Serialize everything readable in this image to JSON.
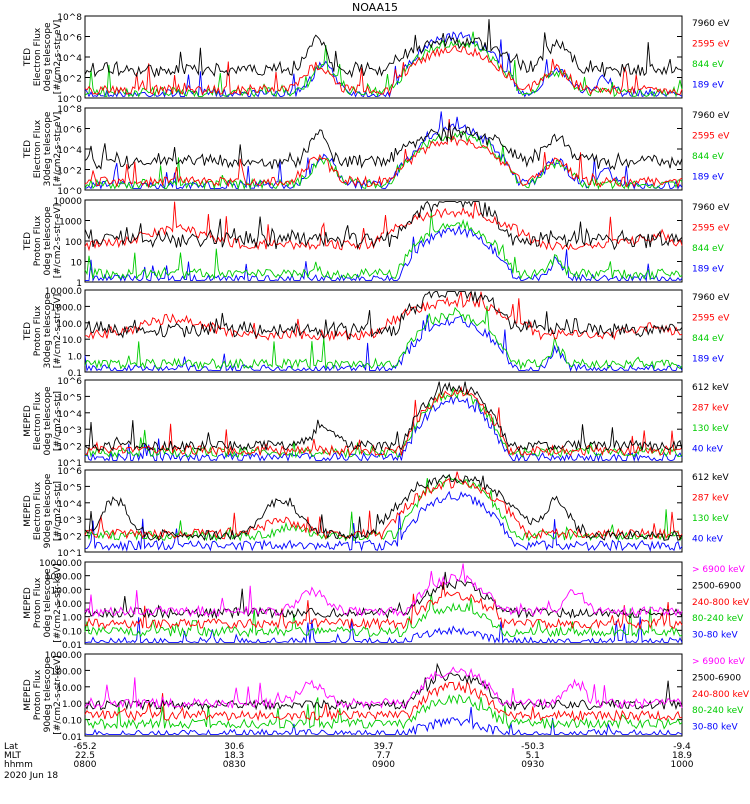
{
  "title": "NOAA15",
  "date_label": "2020 Jun 18",
  "colors": {
    "black": "#000000",
    "red": "#ff0000",
    "green": "#00cc00",
    "blue": "#0000ff",
    "magenta": "#ff00ff"
  },
  "ephemeris": {
    "row_labels": [
      "Lat",
      "MLT",
      "hhmm"
    ],
    "columns": [
      {
        "lat": "-65.2",
        "mlt": "22.5",
        "hhmm": "0800"
      },
      {
        "lat": "30.6",
        "mlt": "18.3",
        "hhmm": "0830"
      },
      {
        "lat": "39.7",
        "mlt": "7.7",
        "hhmm": "0900"
      },
      {
        "lat": "-50.3",
        "mlt": "5.1",
        "hhmm": "0930"
      },
      {
        "lat": "-9.4",
        "mlt": "18.9",
        "hhmm": "1000"
      }
    ]
  },
  "chart_data": [
    {
      "type": "line",
      "ylabel": [
        "TED",
        "Electron Flux",
        "0deg telescope",
        "[#/cm2-s-str-eV]"
      ],
      "yscale": "log",
      "ytick_labels": [
        "10^0",
        "10^2",
        "10^4",
        "10^6",
        "10^8"
      ],
      "series": [
        {
          "name": "7960 eV",
          "color": "black"
        },
        {
          "name": "2595 eV",
          "color": "red"
        },
        {
          "name": "844 eV",
          "color": "green"
        },
        {
          "name": "189 eV",
          "color": "blue"
        }
      ]
    },
    {
      "type": "line",
      "ylabel": [
        "TED",
        "Electron Flux",
        "30deg telescope",
        "[#/cm2-s-str-eV]"
      ],
      "yscale": "log",
      "ytick_labels": [
        "10^0",
        "10^2",
        "10^4",
        "10^6",
        "10^8"
      ],
      "series": [
        {
          "name": "7960 eV",
          "color": "black"
        },
        {
          "name": "2595 eV",
          "color": "red"
        },
        {
          "name": "844 eV",
          "color": "green"
        },
        {
          "name": "189 eV",
          "color": "blue"
        }
      ]
    },
    {
      "type": "line",
      "ylabel": [
        "TED",
        "Proton Flux",
        "0deg telescope",
        "[#/cm2-s-str-eV]"
      ],
      "yscale": "log",
      "ytick_labels": [
        "1",
        "10",
        "100",
        "1000",
        "10000"
      ],
      "series": [
        {
          "name": "7960 eV",
          "color": "black"
        },
        {
          "name": "2595 eV",
          "color": "red"
        },
        {
          "name": "844 eV",
          "color": "green"
        },
        {
          "name": "189 eV",
          "color": "blue"
        }
      ]
    },
    {
      "type": "line",
      "ylabel": [
        "TED",
        "Proton Flux",
        "30deg telescope",
        "[#/cm2-s-str-eV]"
      ],
      "yscale": "log",
      "ytick_labels": [
        "0.1",
        "1.0",
        "10.0",
        "100.0",
        "1000.0",
        "10000.0"
      ],
      "series": [
        {
          "name": "7960 eV",
          "color": "black"
        },
        {
          "name": "2595 eV",
          "color": "red"
        },
        {
          "name": "844 eV",
          "color": "green"
        },
        {
          "name": "189 eV",
          "color": "blue"
        }
      ]
    },
    {
      "type": "line",
      "ylabel": [
        "MEPED",
        "Electron Flux",
        "0deg telescope",
        "[#/cm2-s-str]"
      ],
      "yscale": "log",
      "ytick_labels": [
        "10^1",
        "10^2",
        "10^3",
        "10^4",
        "10^5",
        "10^6"
      ],
      "series": [
        {
          "name": "612 keV",
          "color": "black"
        },
        {
          "name": "287 keV",
          "color": "red"
        },
        {
          "name": "130 keV",
          "color": "green"
        },
        {
          "name": "40 keV",
          "color": "blue"
        }
      ]
    },
    {
      "type": "line",
      "ylabel": [
        "MEPED",
        "Electron Flux",
        "90deg telescope",
        "[#/cm2-s-str]"
      ],
      "yscale": "log",
      "ytick_labels": [
        "10^1",
        "10^2",
        "10^3",
        "10^4",
        "10^5",
        "10^6"
      ],
      "series": [
        {
          "name": "612 keV",
          "color": "black"
        },
        {
          "name": "287 keV",
          "color": "red"
        },
        {
          "name": "130 keV",
          "color": "green"
        },
        {
          "name": "40 keV",
          "color": "blue"
        }
      ]
    },
    {
      "type": "line",
      "ylabel": [
        "MEPED",
        "Proton Flux",
        "0deg telescope",
        "[#/cm2-s-str-keV]"
      ],
      "yscale": "log",
      "ytick_labels": [
        "0.01",
        "0.10",
        "1.00",
        "10.00",
        "100.00",
        "1000.00",
        "10000.00"
      ],
      "series": [
        {
          "name": "> 6900 keV",
          "color": "magenta"
        },
        {
          "name": "2500-6900",
          "color": "black"
        },
        {
          "name": "240-800 keV",
          "color": "red"
        },
        {
          "name": "80-240 keV",
          "color": "green"
        },
        {
          "name": "30-80 keV",
          "color": "blue"
        }
      ]
    },
    {
      "type": "line",
      "ylabel": [
        "MEPED",
        "Proton Flux",
        "90deg telescope",
        "[#/cm2-s-str-keV]"
      ],
      "yscale": "log",
      "ytick_labels": [
        "0.01",
        "0.10",
        "1.00",
        "10.00",
        "100.00",
        "1000.00"
      ],
      "series": [
        {
          "name": "> 6900 keV",
          "color": "magenta"
        },
        {
          "name": "2500-6900",
          "color": "black"
        },
        {
          "name": "240-800 keV",
          "color": "red"
        },
        {
          "name": "80-240 keV",
          "color": "green"
        },
        {
          "name": "30-80 keV",
          "color": "blue"
        }
      ]
    }
  ]
}
